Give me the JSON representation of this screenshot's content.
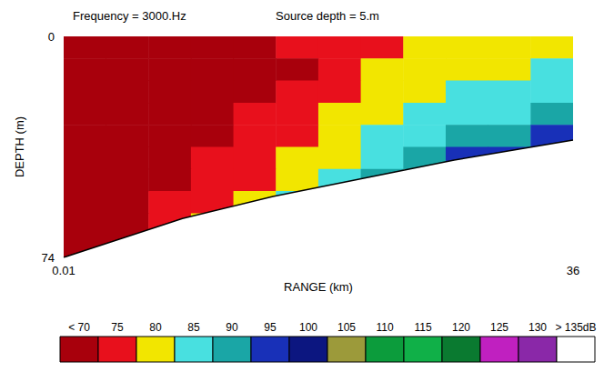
{
  "chart_data": {
    "type": "heatmap",
    "title": "Frequency = 3000.Hz",
    "subtitle": "Source depth = 5.m",
    "x_label": "RANGE (km)",
    "y_label": "DEPTH (m)",
    "xlim": [
      0.01,
      36
    ],
    "xticks": [
      0.01,
      36
    ],
    "ylim": [
      0,
      74
    ],
    "yticks": [
      0,
      74
    ],
    "grid": false,
    "cells": {
      "x_edges": [
        0.01,
        3,
        6,
        9,
        12,
        15,
        18,
        21,
        24,
        27,
        30,
        33,
        36
      ],
      "depth_edges": [
        0,
        7.4,
        14.8,
        22.2,
        29.6,
        37,
        44.4,
        51.8,
        59.2,
        66.6,
        74
      ],
      "values": [
        [
          65,
          65,
          66,
          70,
          74,
          75,
          76,
          78,
          80,
          82,
          80,
          82
        ],
        [
          65,
          65,
          66,
          71,
          73,
          74,
          78,
          80,
          82,
          84,
          83,
          85
        ],
        [
          65,
          65,
          67,
          72,
          74,
          76,
          77,
          82,
          84,
          86,
          86,
          88
        ],
        [
          65,
          65,
          68,
          73,
          75,
          76,
          80,
          84,
          86,
          88,
          88,
          90
        ],
        [
          65,
          65,
          70,
          74,
          76,
          78,
          82,
          86,
          88,
          90,
          92,
          96
        ],
        [
          65,
          66,
          72,
          75,
          77,
          80,
          84,
          88,
          92,
          95,
          97,
          null
        ],
        [
          66,
          68,
          74,
          77,
          78,
          84,
          88,
          92,
          null,
          null,
          null,
          null
        ],
        [
          68,
          70,
          76,
          79,
          80,
          86,
          null,
          null,
          null,
          null,
          null,
          null
        ],
        [
          70,
          72,
          78,
          80,
          null,
          null,
          null,
          null,
          null,
          null,
          null,
          null
        ],
        [
          72,
          72,
          null,
          null,
          null,
          null,
          null,
          null,
          null,
          null,
          null,
          null
        ]
      ]
    },
    "bottom": {
      "x": [
        0.01,
        8.4,
        14.8,
        21.2,
        27.6,
        36
      ],
      "depth": [
        74,
        61,
        53.6,
        47.5,
        41.4,
        34.7
      ]
    },
    "color_bar": {
      "ticks": [
        {
          "value": 70,
          "label": "< 70"
        },
        75,
        80,
        85,
        90,
        95,
        100,
        105,
        110,
        115,
        120,
        125,
        130,
        {
          "value": 135,
          "label": "> 135dB"
        }
      ],
      "colors": [
        "#a8000c",
        "#e8101c",
        "#f2e600",
        "#48e0e0",
        "#1aa6a6",
        "#1830b8",
        "#0c1680",
        "#9c9a3a",
        "#0c9c3c",
        "#10b048",
        "#0a7a30",
        "#c020c0",
        "#8a28a8",
        "#ffffff"
      ]
    }
  }
}
